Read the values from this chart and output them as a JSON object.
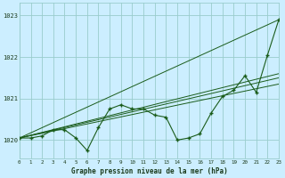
{
  "title": "Graphe pression niveau de la mer (hPa)",
  "bg_color": "#cceeff",
  "grid_color": "#99cccc",
  "line_color": "#1a5c1a",
  "xlim": [
    0,
    23
  ],
  "ylim": [
    1019.55,
    1023.3
  ],
  "yticks": [
    1020,
    1021,
    1022,
    1023
  ],
  "xticks": [
    0,
    1,
    2,
    3,
    4,
    5,
    6,
    7,
    8,
    9,
    10,
    11,
    12,
    13,
    14,
    15,
    16,
    17,
    18,
    19,
    20,
    21,
    22,
    23
  ],
  "main_series": {
    "x": [
      0,
      1,
      2,
      3,
      4,
      5,
      6,
      7,
      8,
      9,
      10,
      11,
      12,
      13,
      14,
      15,
      16,
      17,
      18,
      19,
      20,
      21,
      22,
      23
    ],
    "y": [
      1020.05,
      1020.05,
      1020.1,
      1020.25,
      1020.25,
      1020.05,
      1019.75,
      1020.3,
      1020.75,
      1020.85,
      1020.75,
      1020.75,
      1020.6,
      1020.55,
      1020.0,
      1020.05,
      1020.15,
      1020.65,
      1021.05,
      1021.2,
      1021.55,
      1021.15,
      1022.05,
      1022.9
    ]
  },
  "trend_lines": [
    {
      "x": [
        0,
        23
      ],
      "y": [
        1020.05,
        1022.9
      ]
    },
    {
      "x": [
        0,
        23
      ],
      "y": [
        1020.05,
        1021.35
      ]
    },
    {
      "x": [
        0,
        23
      ],
      "y": [
        1020.05,
        1021.5
      ]
    },
    {
      "x": [
        0,
        23
      ],
      "y": [
        1020.05,
        1021.6
      ]
    }
  ]
}
